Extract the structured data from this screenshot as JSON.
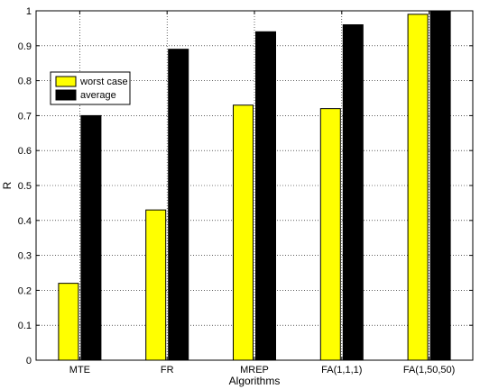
{
  "chart_data": {
    "type": "bar",
    "categories": [
      "MTE",
      "FR",
      "MREP",
      "FA(1,1,1)",
      "FA(1,50,50)"
    ],
    "series": [
      {
        "name": "worst case",
        "values": [
          0.22,
          0.43,
          0.73,
          0.72,
          0.99
        ],
        "color": "#ffff00"
      },
      {
        "name": "average",
        "values": [
          0.7,
          0.89,
          0.94,
          0.96,
          1.0
        ],
        "color": "#000000"
      }
    ],
    "xlabel": "Algorithms",
    "ylabel": "R",
    "ylim": [
      0,
      1
    ],
    "yticks": [
      0,
      0.1,
      0.2,
      0.3,
      0.4,
      0.5,
      0.6,
      0.7,
      0.8,
      0.9,
      1
    ],
    "ytick_labels": [
      "0",
      "0.1",
      "0.2",
      "0.3",
      "0.4",
      "0.5",
      "0.6",
      "0.7",
      "0.8",
      "0.9",
      "1"
    ],
    "grid": true,
    "legend_position": "upper-left"
  }
}
